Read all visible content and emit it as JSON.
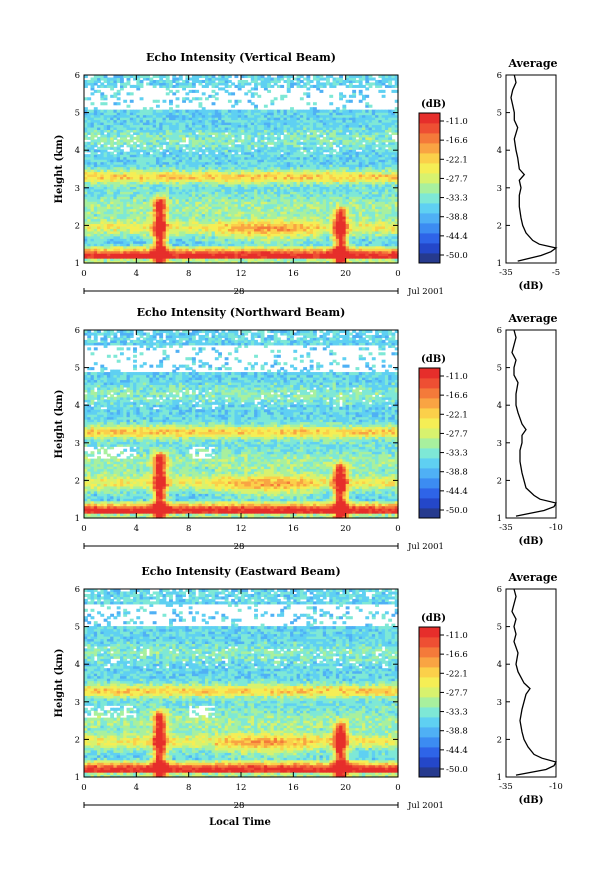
{
  "figure": {
    "xlabel": "Local Time",
    "date_label": "Jul 2001",
    "day_label": "28"
  },
  "colorbar": {
    "unit": "(dB)",
    "ticks": [
      "-11.0",
      "-16.6",
      "-22.1",
      "-27.7",
      "-33.3",
      "-38.8",
      "-44.4",
      "-50.0"
    ],
    "colors": [
      "#263a8e",
      "#2447c9",
      "#2e64e8",
      "#3c8cf2",
      "#4fb0f5",
      "#5fd0f2",
      "#7ee8d6",
      "#a8f09e",
      "#d8f26e",
      "#f5ee55",
      "#fbd04a",
      "#f9a443",
      "#f47a3a",
      "#ee4f33",
      "#e62e2b"
    ]
  },
  "chart_data": [
    {
      "type": "heatmap",
      "title": "Echo Intensity (Vertical Beam)",
      "xlabel": "Local Time",
      "ylabel": "Height (km)",
      "x_ticks": [
        "0",
        "4",
        "8",
        "12",
        "16",
        "20",
        "0"
      ],
      "y_ticks": [
        "1",
        "2",
        "3",
        "4",
        "5",
        "6"
      ],
      "xlim": [
        0,
        24
      ],
      "ylim": [
        1,
        6
      ],
      "z_range": [
        -50.0,
        -11.0
      ],
      "z_unit": "dB",
      "features": {
        "surface_layer_top_km": 1.5,
        "plumes": [
          {
            "time_h": 5.8,
            "top_km": 2.6
          },
          {
            "time_h": 19.6,
            "top_km": 2.3
          }
        ],
        "layers_km": [
          1.95,
          3.3
        ],
        "gaps_km": [
          [
            5.1,
            5.7
          ]
        ]
      },
      "average": {
        "title": "Average",
        "xlabel": "(dB)",
        "x_ticks": [
          "-35",
          "-5"
        ],
        "xlim": [
          -35,
          -5
        ],
        "height_km": [
          1.05,
          1.2,
          1.3,
          1.4,
          1.5,
          1.6,
          1.8,
          2.0,
          2.2,
          2.5,
          2.8,
          3.0,
          3.2,
          3.35,
          3.5,
          3.8,
          4.0,
          4.3,
          4.6,
          4.8,
          5.0,
          5.2,
          5.4,
          5.6,
          5.8,
          6.0
        ],
        "value_db": [
          -28,
          -14,
          -8,
          -5,
          -15,
          -19,
          -23,
          -25,
          -26,
          -27,
          -27,
          -26,
          -27,
          -24,
          -27,
          -28,
          -29,
          -30,
          -28,
          -30,
          -30,
          -31,
          -32,
          -31,
          -29,
          -30
        ]
      }
    },
    {
      "type": "heatmap",
      "title": "Echo Intensity (Northward Beam)",
      "xlabel": "Local Time",
      "ylabel": "Height (km)",
      "x_ticks": [
        "0",
        "4",
        "8",
        "12",
        "16",
        "20",
        "0"
      ],
      "y_ticks": [
        "1",
        "2",
        "3",
        "4",
        "5",
        "6"
      ],
      "xlim": [
        0,
        24
      ],
      "ylim": [
        1,
        6
      ],
      "z_range": [
        -50.0,
        -11.0
      ],
      "z_unit": "dB",
      "features": {
        "surface_layer_top_km": 1.5,
        "plumes": [
          {
            "time_h": 5.8,
            "top_km": 2.6
          },
          {
            "time_h": 19.6,
            "top_km": 2.3
          }
        ],
        "layers_km": [
          1.95,
          3.3
        ],
        "gaps_km": [
          [
            4.9,
            5.6
          ]
        ]
      },
      "average": {
        "title": "Average",
        "xlabel": "(dB)",
        "x_ticks": [
          "-35",
          "-10"
        ],
        "xlim": [
          -35,
          -10
        ],
        "height_km": [
          1.05,
          1.2,
          1.3,
          1.4,
          1.5,
          1.6,
          1.8,
          2.0,
          2.2,
          2.5,
          2.8,
          3.0,
          3.2,
          3.35,
          3.5,
          3.8,
          4.0,
          4.3,
          4.6,
          4.8,
          5.0,
          5.2,
          5.4,
          5.6,
          5.8,
          6.0
        ],
        "value_db": [
          -30,
          -16,
          -11,
          -10,
          -18,
          -21,
          -25,
          -26,
          -27,
          -28,
          -28,
          -27,
          -27,
          -25,
          -27,
          -29,
          -30,
          -30,
          -29,
          -31,
          -31,
          -30,
          -32,
          -31,
          -30,
          -31
        ]
      }
    },
    {
      "type": "heatmap",
      "title": "Echo Intensity (Eastward Beam)",
      "xlabel": "Local Time",
      "ylabel": "Height (km)",
      "x_ticks": [
        "0",
        "4",
        "8",
        "12",
        "16",
        "20",
        "0"
      ],
      "y_ticks": [
        "1",
        "2",
        "3",
        "4",
        "5",
        "6"
      ],
      "xlim": [
        0,
        24
      ],
      "ylim": [
        1,
        6
      ],
      "z_range": [
        -50.0,
        -11.0
      ],
      "z_unit": "dB",
      "features": {
        "surface_layer_top_km": 1.5,
        "plumes": [
          {
            "time_h": 5.8,
            "top_km": 2.6
          },
          {
            "time_h": 19.6,
            "top_km": 2.3
          }
        ],
        "layers_km": [
          1.95,
          3.3
        ],
        "gaps_km": [
          [
            5.0,
            5.6
          ]
        ]
      },
      "average": {
        "title": "Average",
        "xlabel": "(dB)",
        "x_ticks": [
          "-35",
          "-10"
        ],
        "xlim": [
          -35,
          -10
        ],
        "height_km": [
          1.05,
          1.2,
          1.3,
          1.4,
          1.5,
          1.6,
          1.8,
          2.0,
          2.2,
          2.5,
          2.8,
          3.0,
          3.2,
          3.35,
          3.5,
          3.8,
          4.0,
          4.3,
          4.6,
          4.8,
          5.0,
          5.2,
          5.4,
          5.6,
          5.8,
          6.0
        ],
        "value_db": [
          -30,
          -15,
          -11,
          -10,
          -17,
          -21,
          -24,
          -26,
          -27,
          -28,
          -27,
          -26,
          -25,
          -23,
          -26,
          -29,
          -30,
          -29,
          -31,
          -30,
          -31,
          -30,
          -32,
          -31,
          -30,
          -31
        ]
      }
    }
  ]
}
